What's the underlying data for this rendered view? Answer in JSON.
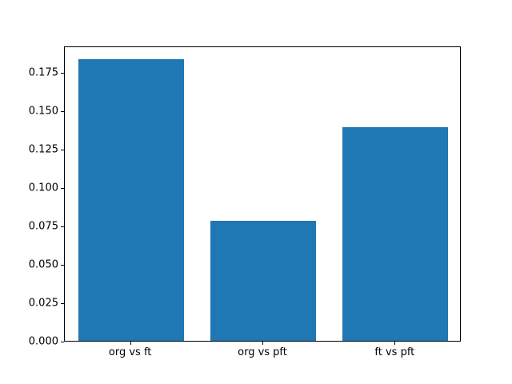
{
  "chart_data": {
    "type": "bar",
    "title": "",
    "xlabel": "",
    "ylabel": "",
    "categories": [
      "org vs ft",
      "org vs pft",
      "ft vs pft"
    ],
    "values": [
      0.183,
      0.078,
      0.139
    ],
    "ylim": [
      0,
      0.192
    ],
    "yticks": [
      0.0,
      0.025,
      0.05,
      0.075,
      0.1,
      0.125,
      0.15,
      0.175
    ],
    "ytick_format_decimals": 3,
    "bar_color": "#1f77b4",
    "bar_width_fraction": 0.8,
    "grid": false,
    "legend_position": "none"
  }
}
